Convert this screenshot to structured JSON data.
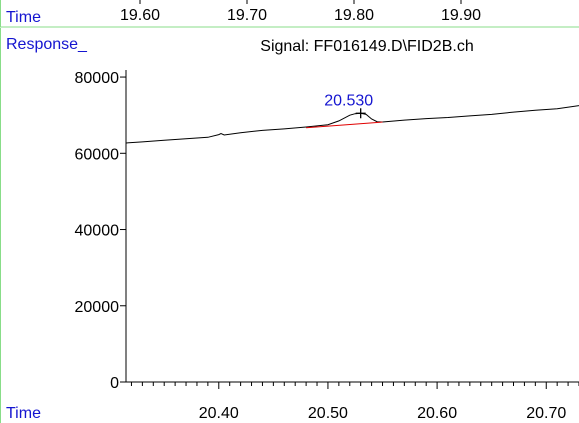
{
  "top_strip": {
    "time_label": "Time",
    "ticks": [
      "19.60",
      "19.70",
      "19.80",
      "19.90"
    ]
  },
  "chart_data": {
    "type": "line",
    "ylabel": "Response_",
    "title": "Signal: FF016149.D\\FID2B.ch",
    "xlabel": "Time",
    "xlim": [
      20.315,
      20.73
    ],
    "ylim": [
      0,
      85000
    ],
    "x_ticks": [
      20.4,
      20.5,
      20.6,
      20.7
    ],
    "x_tick_labels": [
      "20.40",
      "20.50",
      "20.60",
      "20.70"
    ],
    "y_ticks": [
      0,
      20000,
      40000,
      60000,
      80000
    ],
    "y_tick_labels": [
      "0",
      "20000",
      "40000",
      "60000",
      "80000"
    ],
    "series": [
      {
        "x": [
          20.315,
          20.33,
          20.35,
          20.37,
          20.39,
          20.4,
          20.402,
          20.405,
          20.42,
          20.44,
          20.46,
          20.48,
          20.5,
          20.51,
          20.52,
          20.525,
          20.53,
          20.535,
          20.54,
          20.545,
          20.55,
          20.57,
          20.59,
          20.61,
          20.63,
          20.65,
          20.67,
          20.69,
          20.71,
          20.73
        ],
        "y": [
          62700,
          63000,
          63400,
          63800,
          64200,
          64900,
          65200,
          64800,
          65400,
          66000,
          66400,
          66900,
          67500,
          68500,
          70000,
          70400,
          70500,
          70200,
          69000,
          68300,
          68200,
          68700,
          69100,
          69400,
          69800,
          70200,
          70800,
          71300,
          71700,
          72500
        ]
      }
    ],
    "baseline": {
      "x": [
        20.48,
        20.55
      ],
      "y": [
        66700,
        68200
      ]
    },
    "peak_label": {
      "text": "20.530",
      "x": 20.53,
      "y": 70500
    },
    "colors": {
      "trace": "#000000",
      "baseline": "#e00000",
      "labels": "#1515d0",
      "frame": "#88dd88"
    }
  }
}
